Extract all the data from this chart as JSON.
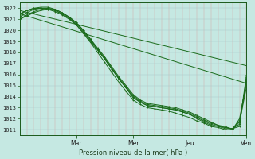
{
  "xlabel": "Pression niveau de la mer( hPa )",
  "ylim": [
    1010.5,
    1022.5
  ],
  "yticks": [
    1011,
    1012,
    1013,
    1014,
    1015,
    1016,
    1017,
    1018,
    1019,
    1020,
    1021,
    1022
  ],
  "xlim": [
    0,
    96
  ],
  "xtick_positions": [
    24,
    48,
    72,
    96
  ],
  "xtick_labels": [
    "Mar",
    "Mer",
    "Jeu",
    "Ven"
  ],
  "bg_color": "#c5e8e2",
  "line_color": "#1a6b1a",
  "lines": [
    {
      "x": [
        0,
        96
      ],
      "y": [
        1021.8,
        1016.8
      ],
      "marker": false
    },
    {
      "x": [
        0,
        96
      ],
      "y": [
        1021.5,
        1015.2
      ],
      "marker": false
    },
    {
      "x": [
        0,
        3,
        6,
        9,
        12,
        15,
        18,
        21,
        24,
        27,
        30,
        33,
        36,
        39,
        42,
        45,
        48,
        51,
        54,
        57,
        60,
        63,
        66,
        69,
        72,
        75,
        78,
        81,
        84,
        87,
        90,
        93,
        96
      ],
      "y": [
        1021.5,
        1021.8,
        1022.0,
        1022.0,
        1021.9,
        1021.7,
        1021.4,
        1021.0,
        1020.5,
        1019.8,
        1019.0,
        1018.2,
        1017.4,
        1016.5,
        1015.6,
        1014.8,
        1014.0,
        1013.5,
        1013.2,
        1013.1,
        1013.0,
        1012.9,
        1012.8,
        1012.6,
        1012.4,
        1012.1,
        1011.8,
        1011.5,
        1011.3,
        1011.2,
        1011.1,
        1011.5,
        1016.0
      ],
      "marker": true
    },
    {
      "x": [
        0,
        3,
        6,
        9,
        12,
        15,
        18,
        21,
        24,
        27,
        30,
        33,
        36,
        39,
        42,
        45,
        48,
        51,
        54,
        57,
        60,
        63,
        66,
        69,
        72,
        75,
        78,
        81,
        84,
        87,
        90,
        93,
        96
      ],
      "y": [
        1021.2,
        1021.6,
        1021.9,
        1022.0,
        1022.0,
        1021.8,
        1021.5,
        1021.1,
        1020.6,
        1019.9,
        1019.1,
        1018.3,
        1017.5,
        1016.6,
        1015.7,
        1014.9,
        1014.1,
        1013.6,
        1013.3,
        1013.2,
        1013.1,
        1013.0,
        1012.9,
        1012.7,
        1012.5,
        1012.2,
        1011.9,
        1011.6,
        1011.4,
        1011.2,
        1011.1,
        1011.8,
        1015.5
      ],
      "marker": true
    },
    {
      "x": [
        0,
        3,
        6,
        9,
        12,
        15,
        18,
        21,
        24,
        27,
        30,
        33,
        36,
        39,
        42,
        45,
        48,
        51,
        54,
        57,
        60,
        63,
        66,
        69,
        72,
        75,
        78,
        81,
        84,
        87,
        90,
        93,
        96
      ],
      "y": [
        1021.0,
        1021.4,
        1021.7,
        1021.9,
        1022.0,
        1021.9,
        1021.6,
        1021.2,
        1020.7,
        1020.0,
        1019.2,
        1018.4,
        1017.6,
        1016.7,
        1015.8,
        1015.0,
        1014.2,
        1013.7,
        1013.4,
        1013.3,
        1013.2,
        1013.1,
        1013.0,
        1012.8,
        1012.6,
        1012.3,
        1012.0,
        1011.7,
        1011.4,
        1011.3,
        1011.0,
        1012.0,
        1015.2
      ],
      "marker": true
    },
    {
      "x": [
        0,
        3,
        6,
        9,
        12,
        15,
        18,
        21,
        24,
        27,
        30,
        33,
        36,
        39,
        42,
        45,
        48,
        51,
        54,
        57,
        60,
        63,
        66,
        69,
        72,
        75,
        78,
        81,
        84,
        87,
        90,
        93,
        96
      ],
      "y": [
        1021.4,
        1021.8,
        1022.0,
        1022.1,
        1022.1,
        1021.9,
        1021.6,
        1021.2,
        1020.7,
        1020.0,
        1019.2,
        1018.3,
        1017.4,
        1016.5,
        1015.6,
        1014.8,
        1013.9,
        1013.5,
        1013.2,
        1013.1,
        1013.0,
        1012.9,
        1012.8,
        1012.6,
        1012.4,
        1012.0,
        1011.7,
        1011.4,
        1011.3,
        1011.1,
        1011.1,
        1011.3,
        1015.8
      ],
      "marker": true
    },
    {
      "x": [
        0,
        3,
        6,
        9,
        12,
        15,
        18,
        21,
        24,
        27,
        30,
        33,
        36,
        39,
        42,
        45,
        48,
        51,
        54,
        57,
        60,
        63,
        66,
        69,
        72,
        75,
        78,
        81,
        84,
        87,
        90,
        93,
        96
      ],
      "y": [
        1021.0,
        1021.3,
        1021.6,
        1021.8,
        1021.9,
        1021.8,
        1021.5,
        1021.1,
        1020.5,
        1019.7,
        1018.9,
        1018.0,
        1017.1,
        1016.2,
        1015.3,
        1014.5,
        1013.7,
        1013.3,
        1013.0,
        1012.9,
        1012.8,
        1012.7,
        1012.5,
        1012.3,
        1012.1,
        1011.8,
        1011.6,
        1011.3,
        1011.2,
        1011.0,
        1011.0,
        1011.7,
        1014.9
      ],
      "marker": true
    }
  ]
}
